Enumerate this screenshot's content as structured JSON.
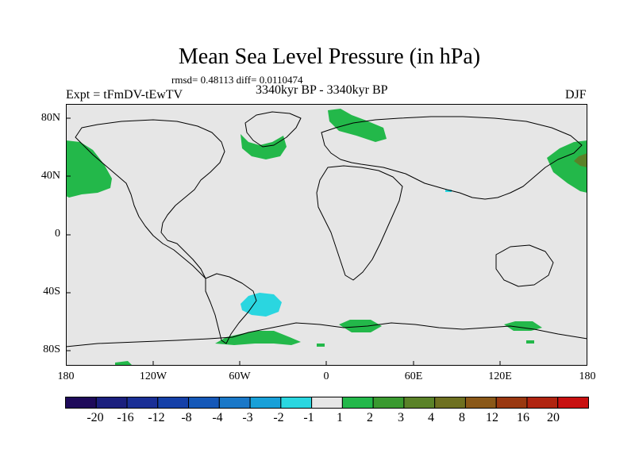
{
  "title": "Mean Sea Level Pressure (in hPa)",
  "stats": "rmsd= 0.48113 diff= 0.0110474",
  "left_label": "Expt = tFmDV-tEwTV",
  "center_label": "3340kyr BP - 3340kyr BP",
  "right_label": "DJF",
  "map": {
    "background": "#e6e6e6",
    "lat_range": [
      -90,
      90
    ],
    "lon_range": [
      -180,
      180
    ],
    "y_ticks": [
      "80N",
      "40N",
      "0",
      "40S",
      "80S"
    ],
    "x_ticks": [
      "180",
      "120W",
      "60W",
      "0",
      "60E",
      "120E",
      "180"
    ]
  },
  "colorbar": {
    "levels": [
      "-20",
      "-16",
      "-12",
      "-8",
      "-4",
      "-3",
      "-2",
      "-1",
      "1",
      "2",
      "3",
      "4",
      "8",
      "12",
      "16",
      "20"
    ],
    "colors": [
      "#1e0a5a",
      "#1b1f7e",
      "#1a2f96",
      "#1540a8",
      "#1558b8",
      "#1a78c8",
      "#18a0d8",
      "#2ad6e0",
      "#e6e6e6",
      "#23b84a",
      "#3a9a30",
      "#5a8228",
      "#6e7020",
      "#8a5818",
      "#9a3810",
      "#b02410",
      "#c81010"
    ]
  }
}
